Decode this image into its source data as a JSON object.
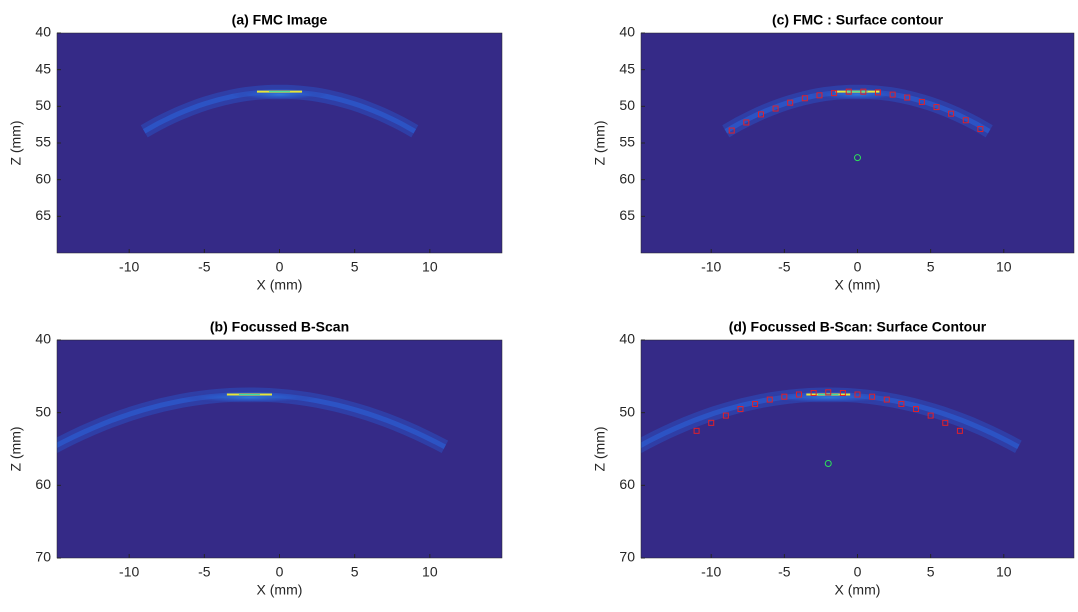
{
  "chart_data": [
    {
      "type": "scatter",
      "title": "(a) FMC Image",
      "xlabel": "X (mm)",
      "ylabel": "Z (mm)",
      "xlim": [
        -14.8,
        14.8
      ],
      "ylim": [
        40,
        70
      ],
      "yreverse": true,
      "xticks": [
        -10,
        -5,
        0,
        5,
        10
      ],
      "yticks": [
        40,
        45,
        50,
        55,
        60,
        65
      ],
      "series": []
    },
    {
      "type": "scatter",
      "title": "(b) Focussed B-Scan",
      "xlabel": "X (mm)",
      "ylabel": "Z (mm)",
      "xlim": [
        -14.8,
        14.8
      ],
      "ylim": [
        40,
        70
      ],
      "yreverse": true,
      "xticks": [
        -10,
        -5,
        0,
        5,
        10
      ],
      "yticks": [
        40,
        50,
        60,
        70
      ],
      "series": []
    },
    {
      "type": "scatter",
      "title": "(c) FMC : Surface contour",
      "xlabel": "X (mm)",
      "ylabel": "Z (mm)",
      "xlim": [
        -14.8,
        14.8
      ],
      "ylim": [
        40,
        70
      ],
      "yreverse": true,
      "xticks": [
        -10,
        -5,
        0,
        5,
        10
      ],
      "yticks": [
        40,
        45,
        50,
        55,
        60,
        65
      ],
      "series": [
        {
          "color": "#e0202a",
          "marker": "square",
          "x": [
            -8.6,
            -7.6,
            -6.6,
            -5.6,
            -4.6,
            -3.6,
            -2.6,
            -1.6,
            -0.6,
            0.4,
            1.4,
            2.4,
            3.4,
            4.4,
            5.4,
            6.4,
            7.4,
            8.4
          ],
          "values": [
            53.3,
            52.2,
            51.1,
            50.3,
            49.5,
            48.9,
            48.5,
            48.2,
            48.0,
            48.0,
            48.1,
            48.4,
            48.8,
            49.4,
            50.1,
            51.0,
            51.9,
            53.1
          ]
        },
        {
          "color": "#2ee05a",
          "marker": "circle",
          "x": [
            0
          ],
          "values": [
            57
          ]
        }
      ]
    },
    {
      "type": "scatter",
      "title": "(d) Focussed B-Scan: Surface Contour",
      "xlabel": "X (mm)",
      "ylabel": "Z (mm)",
      "xlim": [
        -14.8,
        14.8
      ],
      "ylim": [
        40,
        70
      ],
      "yreverse": true,
      "xticks": [
        -10,
        -5,
        0,
        5,
        10
      ],
      "yticks": [
        40,
        50,
        60,
        70
      ],
      "series": [
        {
          "color": "#e0202a",
          "marker": "square",
          "x": [
            -11,
            -10,
            -9,
            -8,
            -7,
            -6,
            -5,
            -4,
            -3,
            -2,
            -1,
            0,
            1,
            2,
            3,
            4,
            5,
            6,
            7
          ],
          "values": [
            52.5,
            51.4,
            50.4,
            49.5,
            48.8,
            48.2,
            47.8,
            47.5,
            47.3,
            47.2,
            47.3,
            47.5,
            47.8,
            48.2,
            48.8,
            49.5,
            50.4,
            51.4,
            52.5
          ]
        },
        {
          "color": "#2ee05a",
          "marker": "circle",
          "x": [
            -2
          ],
          "values": [
            57
          ]
        }
      ]
    }
  ]
}
